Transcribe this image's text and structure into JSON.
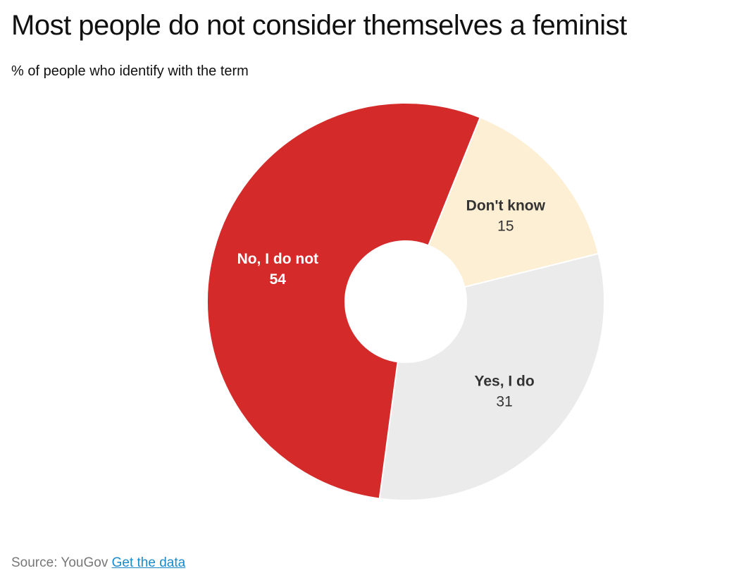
{
  "header": {
    "title": "Most people do not consider themselves a feminist",
    "subtitle": "% of people who identify with the term"
  },
  "footer": {
    "source_label": "Source: YouGov",
    "link_label": "Get the data"
  },
  "chart_data": {
    "type": "pie",
    "variant": "donut",
    "title": "Most people do not consider themselves a feminist",
    "subtitle": "% of people who identify with the term",
    "slices": [
      {
        "label": "Don't know",
        "value": 15,
        "color": "#fdefd4",
        "text_color": "#333333",
        "value_color": "#333333"
      },
      {
        "label": "Yes, I do",
        "value": 31,
        "color": "#ebebeb",
        "text_color": "#333333",
        "value_color": "#333333"
      },
      {
        "label": "No, I do not",
        "value": 54,
        "color": "#d42a2a",
        "text_color": "#ffffff",
        "value_color": "#ffffff"
      }
    ]
  }
}
